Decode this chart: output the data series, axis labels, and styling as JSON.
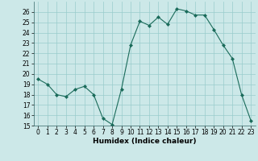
{
  "x": [
    0,
    1,
    2,
    3,
    4,
    5,
    6,
    7,
    8,
    9,
    10,
    11,
    12,
    13,
    14,
    15,
    16,
    17,
    18,
    19,
    20,
    21,
    22,
    23
  ],
  "y": [
    19.5,
    19.0,
    18.0,
    17.8,
    18.5,
    18.8,
    18.0,
    15.7,
    15.1,
    18.5,
    22.8,
    25.1,
    24.7,
    25.5,
    24.8,
    26.3,
    26.1,
    25.7,
    25.7,
    24.3,
    22.8,
    21.5,
    18.0,
    15.5
  ],
  "line_color": "#1a6b5a",
  "marker": "D",
  "marker_size": 2.0,
  "bg_color": "#cce8e8",
  "grid_color": "#99cccc",
  "xlabel": "Humidex (Indice chaleur)",
  "ylabel": "",
  "ylim": [
    15,
    27
  ],
  "xlim": [
    -0.5,
    23.5
  ],
  "yticks": [
    15,
    16,
    17,
    18,
    19,
    20,
    21,
    22,
    23,
    24,
    25,
    26
  ],
  "xticks": [
    0,
    1,
    2,
    3,
    4,
    5,
    6,
    7,
    8,
    9,
    10,
    11,
    12,
    13,
    14,
    15,
    16,
    17,
    18,
    19,
    20,
    21,
    22,
    23
  ],
  "label_fontsize": 6.5,
  "tick_fontsize": 5.5
}
